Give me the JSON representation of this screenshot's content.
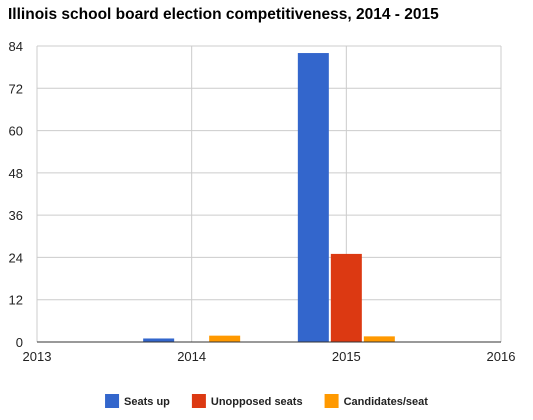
{
  "chart_data": {
    "type": "bar",
    "title": "Illinois school board election competitiveness, 2014 - 2015",
    "xlabel": "",
    "ylabel": "",
    "x_ticks": [
      "2013",
      "2014",
      "2015",
      "2016"
    ],
    "xlim": [
      2013,
      2016
    ],
    "categories": [
      "2014",
      "2015"
    ],
    "ylim": [
      0,
      84
    ],
    "y_ticks": [
      0,
      12,
      24,
      36,
      48,
      60,
      72,
      84
    ],
    "grid": true,
    "legend_position": "bottom",
    "series": [
      {
        "name": "Seats up",
        "color": "#3366cc",
        "values": [
          1,
          82
        ]
      },
      {
        "name": "Unopposed seats",
        "color": "#dc3912",
        "values": [
          0,
          25
        ]
      },
      {
        "name": "Candidates/seat",
        "color": "#ff9900",
        "values": [
          1.8,
          1.6
        ]
      }
    ]
  }
}
